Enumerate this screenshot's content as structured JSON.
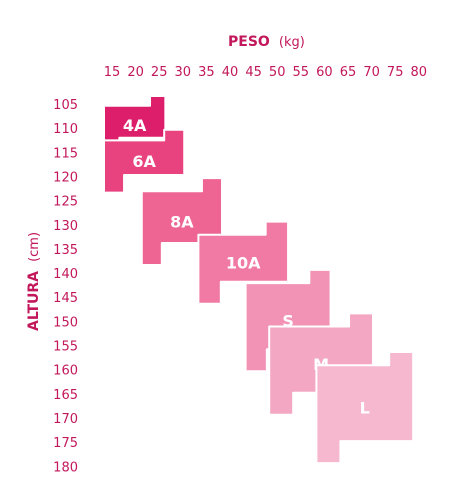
{
  "chart_data": {
    "type": "size-chart",
    "x_axis": {
      "title": "PESO",
      "unit": "(kg)",
      "ticks": [
        "15",
        "20",
        "25",
        "30",
        "35",
        "40",
        "45",
        "50",
        "55",
        "60",
        "65",
        "70",
        "75",
        "80"
      ]
    },
    "y_axis": {
      "title": "ALTURA",
      "unit": "(cm)",
      "ticks": [
        "105",
        "110",
        "115",
        "120",
        "125",
        "130",
        "135",
        "140",
        "145",
        "150",
        "155",
        "160",
        "165",
        "170",
        "175",
        "180"
      ]
    },
    "zones": [
      {
        "label": "4A",
        "weight_kg": [
          15,
          28
        ],
        "height_cm": [
          105,
          117
        ],
        "color": "#dd1e6b"
      },
      {
        "label": "6A",
        "weight_kg": [
          15,
          32
        ],
        "height_cm": [
          112,
          125
        ],
        "color": "#e8437f"
      },
      {
        "label": "8A",
        "weight_kg": [
          23,
          40
        ],
        "height_cm": [
          122,
          140
        ],
        "color": "#ee6593"
      },
      {
        "label": "10A",
        "weight_kg": [
          35,
          54
        ],
        "height_cm": [
          131,
          148
        ],
        "color": "#f07aa3"
      },
      {
        "label": "S",
        "weight_kg": [
          45,
          63
        ],
        "height_cm": [
          141,
          162
        ],
        "color": "#f293b5"
      },
      {
        "label": "M",
        "weight_kg": [
          50,
          72
        ],
        "height_cm": [
          150,
          171
        ],
        "color": "#f4a7c3"
      },
      {
        "label": "L",
        "weight_kg": [
          60,
          80.5
        ],
        "height_cm": [
          158,
          181
        ],
        "color": "#f6b8cf"
      }
    ]
  }
}
